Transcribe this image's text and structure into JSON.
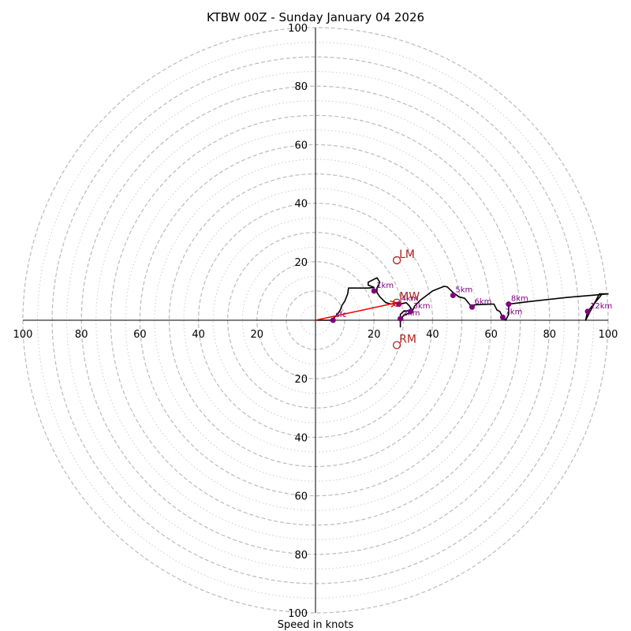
{
  "chart_data": {
    "type": "hodograph",
    "title": "KTBW 00Z - Sunday January 04 2026",
    "xlabel": "Speed in knots",
    "rmax": 100,
    "ring_values_dashed": [
      10,
      20,
      30,
      40,
      50,
      60,
      70,
      80,
      90,
      100
    ],
    "ring_values_dotted": [
      5,
      15,
      25,
      35,
      45,
      55,
      65,
      75,
      85,
      95
    ],
    "x_tick_labels": [
      "100",
      "80",
      "60",
      "40",
      "20",
      "20",
      "40",
      "60",
      "80",
      "100"
    ],
    "x_tick_values": [
      -100,
      -80,
      -60,
      -40,
      -20,
      20,
      40,
      60,
      80,
      100
    ],
    "y_tick_labels_top": [
      "20",
      "40",
      "60",
      "80",
      "100"
    ],
    "y_tick_values_top": [
      20,
      40,
      60,
      80,
      100
    ],
    "y_tick_labels_bottom": [
      "20",
      "40",
      "60",
      "80",
      "100"
    ],
    "y_tick_values_bottom": [
      -20,
      -40,
      -60,
      -80,
      -100
    ],
    "trace": [
      [
        0,
        0
      ],
      [
        5,
        0
      ],
      [
        6,
        0.5
      ],
      [
        7.5,
        2
      ],
      [
        8.5,
        3.5
      ],
      [
        9,
        5
      ],
      [
        10,
        6.5
      ],
      [
        11,
        9
      ],
      [
        11.3,
        11
      ],
      [
        18,
        11
      ],
      [
        20,
        11.2
      ],
      [
        18,
        12
      ],
      [
        18,
        13
      ],
      [
        21,
        14.5
      ],
      [
        22,
        13
      ],
      [
        21,
        11
      ],
      [
        21,
        9.5
      ],
      [
        22,
        8
      ],
      [
        24,
        6
      ],
      [
        26,
        5.5
      ],
      [
        28,
        6
      ],
      [
        29,
        5.5
      ],
      [
        31,
        6
      ],
      [
        32,
        5
      ],
      [
        33,
        3.5
      ],
      [
        30,
        3
      ],
      [
        29,
        2
      ],
      [
        29,
        0
      ],
      [
        29,
        -2.3
      ],
      [
        29,
        0
      ],
      [
        30,
        1.5
      ],
      [
        33,
        3
      ],
      [
        34,
        5
      ],
      [
        36,
        7
      ],
      [
        38,
        8.5
      ],
      [
        40,
        10
      ],
      [
        42,
        10.8
      ],
      [
        44,
        11.6
      ],
      [
        45,
        11.4
      ],
      [
        47,
        9.5
      ],
      [
        49,
        8
      ],
      [
        51,
        7.5
      ],
      [
        53,
        5
      ],
      [
        55,
        5.3
      ],
      [
        60,
        5.5
      ],
      [
        61,
        5.5
      ],
      [
        62,
        3.5
      ],
      [
        63,
        3
      ],
      [
        64,
        1
      ],
      [
        65,
        0
      ],
      [
        66,
        2
      ],
      [
        66,
        5.5
      ],
      [
        74,
        6.5
      ],
      [
        86,
        7.8
      ],
      [
        100,
        9
      ],
      [
        97,
        9
      ],
      [
        92.3,
        0
      ],
      [
        93,
        3
      ],
      [
        98,
        9
      ],
      [
        100,
        9
      ]
    ],
    "height_points": [
      {
        "label": "sfc",
        "u": 6,
        "v": 0
      },
      {
        "label": "1km",
        "u": 20,
        "v": 10
      },
      {
        "label": "2km",
        "u": 29,
        "v": 0.5
      },
      {
        "label": "3km",
        "u": 32.5,
        "v": 3
      },
      {
        "label": "4km",
        "u": 28.5,
        "v": 5.5
      },
      {
        "label": "5km",
        "u": 47,
        "v": 8.5
      },
      {
        "label": "6km",
        "u": 53.5,
        "v": 4.5
      },
      {
        "label": "7km",
        "u": 64,
        "v": 1
      },
      {
        "label": "8km",
        "u": 66,
        "v": 5.5
      },
      {
        "label": "12km",
        "u": 93,
        "v": 3
      }
    ],
    "motion_markers": [
      {
        "label": "LM",
        "u": 27.8,
        "v": 20.5
      },
      {
        "label": "MW",
        "u": 27.8,
        "v": 6
      },
      {
        "label": "RM",
        "u": 27.8,
        "v": -8.5
      }
    ],
    "mean_wind_vector": {
      "u": 27.8,
      "v": 6
    },
    "colors": {
      "trace": "#000000",
      "height_points": "#800080",
      "motion_markers": "#b22222",
      "mean_wind_vector": "#ff0000",
      "ring_dashed": "#bbbbbb",
      "ring_dotted": "#cccccc",
      "axes": "#000000"
    }
  }
}
